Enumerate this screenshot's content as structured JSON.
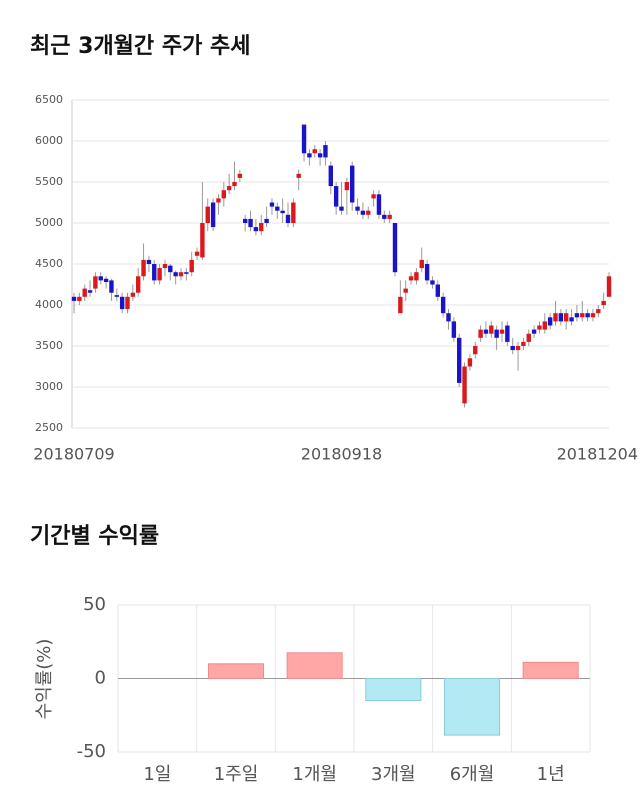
{
  "chart_data": [
    {
      "type": "candlestick",
      "title": "최근 3개월간 주가 추세",
      "categories": [
        "20180709",
        null,
        null,
        null,
        null,
        null,
        null,
        null,
        null,
        null,
        null,
        null,
        null,
        null,
        null,
        null,
        null,
        null,
        null,
        null,
        null,
        null,
        null,
        null,
        null,
        null,
        null,
        null,
        null,
        null,
        null,
        null,
        null,
        null,
        null,
        null,
        null,
        null,
        null,
        null,
        null,
        null,
        null,
        null,
        null,
        null,
        null,
        null,
        null,
        null,
        "20180918",
        null,
        null,
        null,
        null,
        null,
        null,
        null,
        null,
        null,
        null,
        null,
        null,
        null,
        null,
        null,
        null,
        null,
        null,
        null,
        null,
        null,
        null,
        null,
        null,
        null,
        null,
        null,
        null,
        null,
        null,
        null,
        null,
        null,
        null,
        null,
        null,
        null,
        null,
        null,
        null,
        null,
        null,
        null,
        null,
        null,
        null,
        null,
        null,
        null,
        "20181204"
      ],
      "open": [
        4100,
        4050,
        4100,
        4180,
        4200,
        4350,
        4320,
        4300,
        4120,
        4100,
        3950,
        4100,
        4150,
        4350,
        4550,
        4500,
        4300,
        4450,
        4480,
        4400,
        4350,
        4400,
        4400,
        4600,
        4580,
        5000,
        5250,
        5250,
        5300,
        5400,
        5450,
        5550,
        5050,
        5050,
        4950,
        4900,
        5050,
        5250,
        5200,
        5150,
        5100,
        5000,
        5550,
        6200,
        5850,
        5850,
        5850,
        5950,
        5700,
        5450,
        5200,
        5400,
        5700,
        5200,
        5150,
        5100,
        5300,
        5350,
        5100,
        5050,
        5000,
        3900,
        4150,
        4300,
        4300,
        4450,
        4500,
        4300,
        4250,
        4100,
        3900,
        3800,
        3600,
        2800,
        3250,
        3400,
        3600,
        3700,
        3650,
        3700,
        3650,
        3750,
        3500,
        3450,
        3500,
        3550,
        3700,
        3700,
        3700,
        3850,
        3800,
        3900,
        3800,
        3850,
        3900,
        3850,
        3900,
        3850,
        3900,
        4000,
        4100
      ],
      "high": [
        4150,
        4150,
        4250,
        4300,
        4400,
        4400,
        4350,
        4320,
        4200,
        4150,
        4150,
        4250,
        4450,
        4750,
        4600,
        4550,
        4500,
        4550,
        4500,
        4420,
        4450,
        4450,
        4650,
        4700,
        5500,
        5300,
        5300,
        5350,
        5500,
        5600,
        5750,
        5650,
        5100,
        5150,
        5050,
        5100,
        5200,
        5300,
        5250,
        5300,
        5250,
        5300,
        5650,
        6200,
        5900,
        5950,
        5900,
        6000,
        5750,
        5500,
        5500,
        5550,
        5750,
        5300,
        5250,
        5200,
        5400,
        5400,
        5150,
        5150,
        5000,
        4300,
        4300,
        4400,
        4450,
        4700,
        4550,
        4350,
        4300,
        4150,
        3950,
        3850,
        3650,
        3300,
        3400,
        3550,
        3750,
        3800,
        3800,
        3750,
        3800,
        3800,
        3600,
        3550,
        3600,
        3700,
        3750,
        3800,
        3900,
        3900,
        4050,
        3950,
        3950,
        3950,
        4000,
        4050,
        3950,
        3950,
        4000,
        4150,
        4400
      ],
      "low": [
        3900,
        4000,
        4050,
        4100,
        4150,
        4250,
        4200,
        4050,
        4050,
        3900,
        3900,
        4050,
        4100,
        4300,
        4400,
        4250,
        4250,
        4350,
        4300,
        4250,
        4300,
        4300,
        4350,
        4550,
        4550,
        4900,
        4900,
        5100,
        5200,
        5350,
        5400,
        5500,
        4900,
        4900,
        4850,
        4850,
        4950,
        5100,
        5050,
        5000,
        4950,
        4950,
        5400,
        5750,
        5700,
        5800,
        5700,
        5700,
        5350,
        5100,
        5100,
        5100,
        5150,
        5100,
        5050,
        5050,
        5200,
        5050,
        5000,
        5000,
        4350,
        3900,
        4050,
        4250,
        4250,
        4400,
        4250,
        4200,
        4050,
        3850,
        3700,
        3550,
        3000,
        2750,
        3200,
        3350,
        3550,
        3600,
        3600,
        3450,
        3550,
        3500,
        3400,
        3200,
        3450,
        3500,
        3600,
        3650,
        3650,
        3700,
        3750,
        3750,
        3700,
        3750,
        3800,
        3800,
        3800,
        3800,
        3850,
        3950,
        4100
      ],
      "close": [
        4050,
        4100,
        4200,
        4150,
        4350,
        4300,
        4280,
        4150,
        4100,
        3950,
        4100,
        4150,
        4350,
        4550,
        4500,
        4300,
        4450,
        4500,
        4400,
        4350,
        4400,
        4380,
        4550,
        4650,
        5000,
        5200,
        4950,
        5300,
        5400,
        5450,
        5500,
        5600,
        5000,
        4950,
        4900,
        5000,
        5000,
        5200,
        5150,
        5120,
        5000,
        5250,
        5600,
        5850,
        5800,
        5900,
        5800,
        5800,
        5450,
        5200,
        5150,
        5500,
        5250,
        5150,
        5100,
        5150,
        5350,
        5100,
        5050,
        5100,
        4400,
        4100,
        4200,
        4350,
        4400,
        4550,
        4300,
        4250,
        4100,
        3900,
        3800,
        3600,
        3050,
        3250,
        3350,
        3500,
        3700,
        3650,
        3750,
        3600,
        3700,
        3550,
        3450,
        3500,
        3550,
        3650,
        3650,
        3750,
        3800,
        3750,
        3900,
        3800,
        3900,
        3800,
        3850,
        3900,
        3850,
        3900,
        3950,
        4050,
        4350
      ],
      "up_color": "#d9191c",
      "down_color": "#1a14c8",
      "ylim": [
        2500,
        6500
      ],
      "yticks": [
        2500,
        3000,
        3500,
        4000,
        4500,
        5000,
        5500,
        6000,
        6500
      ],
      "grid": true
    },
    {
      "type": "bar",
      "title": "기간별 수익률",
      "ylabel": "수익률(%)",
      "categories": [
        "1일",
        "1주일",
        "1개월",
        "3개월",
        "6개월",
        "1년"
      ],
      "values": [
        0,
        10,
        17.5,
        -15,
        -38.5,
        11
      ],
      "positive_color": "#ffa6a6",
      "negative_color": "#b3e9f3",
      "ylim": [
        -50,
        50
      ],
      "yticks": [
        -50,
        0,
        50
      ],
      "grid": true
    }
  ]
}
